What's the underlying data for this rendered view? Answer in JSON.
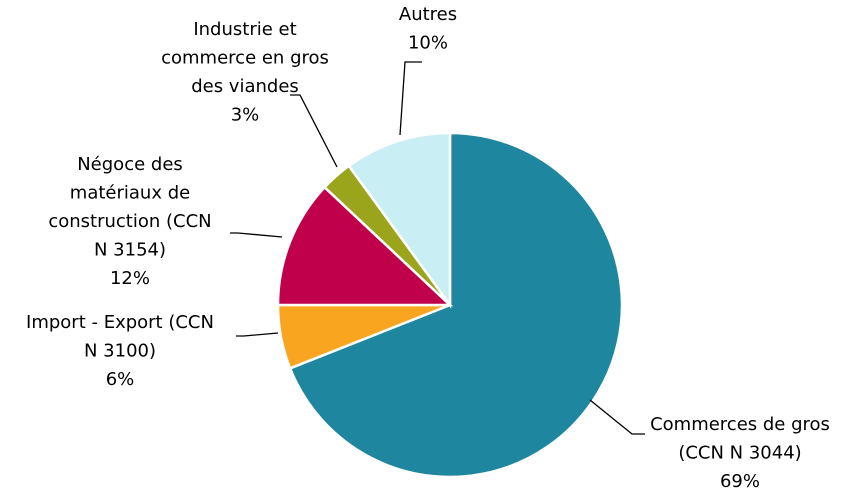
{
  "chart_data": {
    "type": "pie",
    "categories": [
      "Commerces de gros\n(CCN N  3044)",
      "Import - Export (CCN\nN  3100)",
      "Négoce des\nmatériaux de\nconstruction (CCN\nN  3154)",
      "Industrie et\ncommerce en gros\ndes viandes",
      "Autres"
    ],
    "values": [
      69,
      6,
      12,
      3,
      10
    ],
    "value_labels": [
      "69%",
      "6%",
      "12%",
      "3%",
      "10%"
    ],
    "colors": [
      "#1f86a0",
      "#f9a51f",
      "#c0004a",
      "#9aa51c",
      "#c9eef4"
    ]
  }
}
